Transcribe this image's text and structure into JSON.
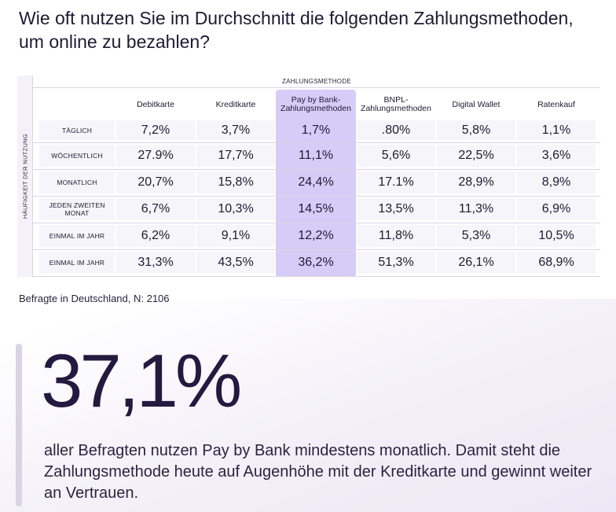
{
  "title": "Wie oft nutzen Sie im Durchschnitt die folgenden Zahlungsmethoden, um online zu bezahlen?",
  "chart_data": {
    "type": "table",
    "column_group_label": "ZAHLUNGSMETHODE",
    "row_group_label": "HÄUFIGKEIT DER NUTZUNG",
    "columns": [
      "Debitkarte",
      "Kreditkarte",
      "Pay by Bank-Zahlungsmethoden",
      "BNPL-Zahlungsmethoden",
      "Digital Wallet",
      "Ratenkauf"
    ],
    "column_display": [
      "Debitkarte",
      "Kreditkarte",
      "Pay by Bank-\nZahlungsmethoden",
      "BNPL-\nZahlungsmethoden",
      "Digital Wallet",
      "Ratenkauf"
    ],
    "highlighted_column": "Pay by Bank-Zahlungsmethoden",
    "rows": [
      {
        "label": "TÄGLICH",
        "values": [
          "7,2%",
          "3,7%",
          "1,7%",
          ".80%",
          "5,8%",
          "1,1%"
        ]
      },
      {
        "label": "WÖCHENTLICH",
        "values": [
          "27.9%",
          "17,7%",
          "11,1%",
          "5,6%",
          "22,5%",
          "3,6%"
        ]
      },
      {
        "label": "MONATLICH",
        "values": [
          "20,7%",
          "15,8%",
          "24,4%",
          "17.1%",
          "28,9%",
          "8,9%"
        ]
      },
      {
        "label": "JEDEN ZWEITEN MONAT",
        "values": [
          "6,7%",
          "10,3%",
          "14,5%",
          "13,5%",
          "11,3%",
          "6,9%"
        ]
      },
      {
        "label": "EINMAL IM JAHR",
        "values": [
          "6,2%",
          "9,1%",
          "12,2%",
          "11,8%",
          "5,3%",
          "10,5%"
        ]
      },
      {
        "label": "EINMAL IM JAHR",
        "values": [
          "31,3%",
          "43,5%",
          "36,2%",
          "51,3%",
          "26,1%",
          "68,9%"
        ]
      }
    ],
    "highlight_color": "#d5cdf7"
  },
  "note": "Befragte in Deutschland, N: 2106",
  "stat": {
    "value": "37,1%",
    "description": "aller Befragten nutzen Pay by Bank mindestens monatlich. Damit steht die Zahlungsmethode heute auf Augenhöhe mit der Kreditkarte und gewinnt weiter an Vertrauen."
  }
}
